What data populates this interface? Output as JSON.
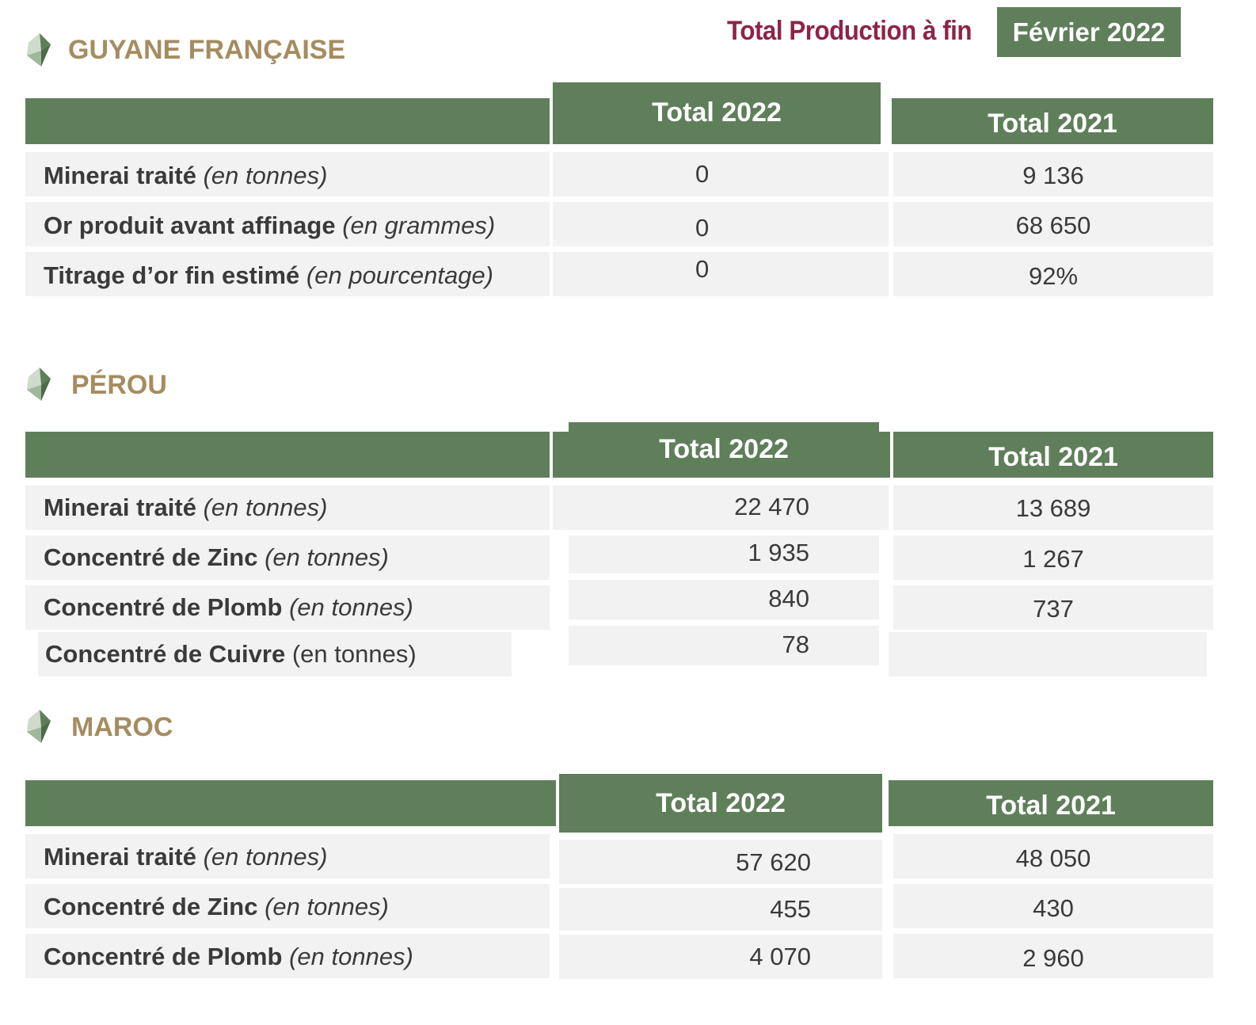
{
  "banner": {
    "label": "Total Production à fin",
    "date": "Février 2022",
    "accent_color": "#8e2349",
    "header_color": "#5f7f5a",
    "title_color": "#a58c60"
  },
  "icon": "gem-icon",
  "sections": [
    {
      "title": "GUYANE FRANÇAISE",
      "col_2022": "Total 2022",
      "col_2021": "Total 2021",
      "rows": [
        {
          "label": "Minerai traité",
          "unit": "(en tonnes)",
          "v2022": "0",
          "v2021": "9 136"
        },
        {
          "label": "Or produit avant affinage",
          "unit": "(en grammes)",
          "v2022": "0",
          "v2021": "68 650"
        },
        {
          "label": "Titrage d’or fin estimé",
          "unit": "(en pourcentage)",
          "v2022": "0",
          "v2021": "92%"
        }
      ]
    },
    {
      "title": "PÉROU",
      "col_2022": "Total 2022",
      "col_2021": "Total 2021",
      "rows": [
        {
          "label": "Minerai traité",
          "unit": "(en tonnes)",
          "v2022": "22 470",
          "v2021": "13 689"
        },
        {
          "label": "Concentré de Zinc",
          "unit": "(en tonnes)",
          "v2022": "1 935",
          "v2021": "1 267"
        },
        {
          "label": "Concentré de Plomb",
          "unit": "(en tonnes)",
          "v2022": "840",
          "v2021": "737"
        },
        {
          "label": "Concentré de Cuivre",
          "unit": "(en tonnes)",
          "v2022": "78",
          "v2021": ""
        }
      ]
    },
    {
      "title": "MAROC",
      "col_2022": "Total 2022",
      "col_2021": "Total 2021",
      "rows": [
        {
          "label": "Minerai traité",
          "unit": "(en tonnes)",
          "v2022": "57 620",
          "v2021": "48 050"
        },
        {
          "label": "Concentré de Zinc",
          "unit": "(en tonnes)",
          "v2022": "455",
          "v2021": "430"
        },
        {
          "label": "Concentré de Plomb",
          "unit": "(en tonnes)",
          "v2022": "4 070",
          "v2021": "2 960"
        }
      ]
    }
  ]
}
